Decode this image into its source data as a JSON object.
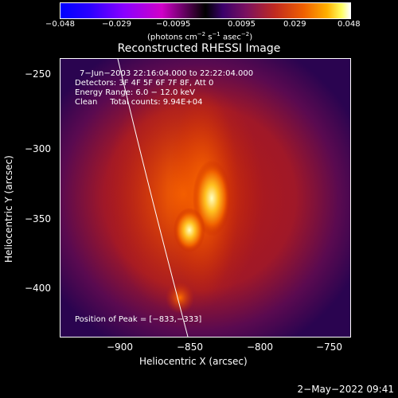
{
  "colorbar": {
    "ticks": [
      "−0.048",
      "−0.029",
      "−0.0095",
      "0.0095",
      "0.029",
      "0.048"
    ],
    "unit_label_pre": "(photons cm",
    "unit_exp1": "−2",
    "unit_mid": " s",
    "unit_exp2": "−1",
    "unit_mid2": " asec",
    "unit_exp3": "−2",
    "unit_post": ")"
  },
  "title": "Reconstructed RHESSI Image",
  "annotations": {
    "time": "7−Jun−2003 22:16:04.000 to 22:22:04.000",
    "detectors": "Detectors: 3F 4F 5F 6F 7F 8F, Att 0",
    "energy": "Energy Range: 6.0 − 12.0 keV",
    "clean": "Clean     Total counts: 9.94E+04",
    "peak": "Position of Peak = [−833,−333]"
  },
  "axes": {
    "xlabel": "Heliocentric X (arcsec)",
    "ylabel": "Heliocentric Y (arcsec)",
    "xticks": [
      "−900",
      "−850",
      "−800",
      "−750"
    ],
    "yticks": [
      "−250",
      "−300",
      "−350",
      "−400"
    ]
  },
  "timestamp": "2−May−2022 09:41"
}
